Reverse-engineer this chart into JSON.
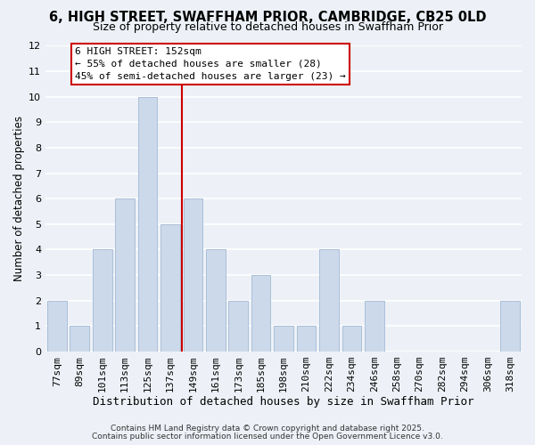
{
  "title": "6, HIGH STREET, SWAFFHAM PRIOR, CAMBRIDGE, CB25 0LD",
  "subtitle": "Size of property relative to detached houses in Swaffham Prior",
  "xlabel": "Distribution of detached houses by size in Swaffham Prior",
  "ylabel": "Number of detached properties",
  "bar_labels": [
    "77sqm",
    "89sqm",
    "101sqm",
    "113sqm",
    "125sqm",
    "137sqm",
    "149sqm",
    "161sqm",
    "173sqm",
    "185sqm",
    "198sqm",
    "210sqm",
    "222sqm",
    "234sqm",
    "246sqm",
    "258sqm",
    "270sqm",
    "282sqm",
    "294sqm",
    "306sqm",
    "318sqm"
  ],
  "bar_heights": [
    2,
    1,
    4,
    6,
    10,
    5,
    6,
    4,
    2,
    3,
    1,
    1,
    4,
    1,
    2,
    0,
    0,
    0,
    0,
    0,
    2
  ],
  "bar_color": "#ccd9ea",
  "bar_edge_color": "#aabfd8",
  "ylim": [
    0,
    12
  ],
  "yticks": [
    0,
    1,
    2,
    3,
    4,
    5,
    6,
    7,
    8,
    9,
    10,
    11,
    12
  ],
  "vline_color": "#cc0000",
  "vline_bar_index": 6,
  "annotation_title": "6 HIGH STREET: 152sqm",
  "annotation_line1": "← 55% of detached houses are smaller (28)",
  "annotation_line2": "45% of semi-detached houses are larger (23) →",
  "annotation_box_edge": "#cc0000",
  "annotation_box_face": "#ffffff",
  "background_color": "#edf1f7",
  "grid_color": "#ffffff",
  "footer1": "Contains HM Land Registry data © Crown copyright and database right 2025.",
  "footer2": "Contains public sector information licensed under the Open Government Licence v3.0.",
  "title_fontsize": 10.5,
  "subtitle_fontsize": 9,
  "xlabel_fontsize": 9,
  "ylabel_fontsize": 8.5,
  "tick_fontsize": 8,
  "annot_fontsize": 8,
  "footer_fontsize": 6.5
}
